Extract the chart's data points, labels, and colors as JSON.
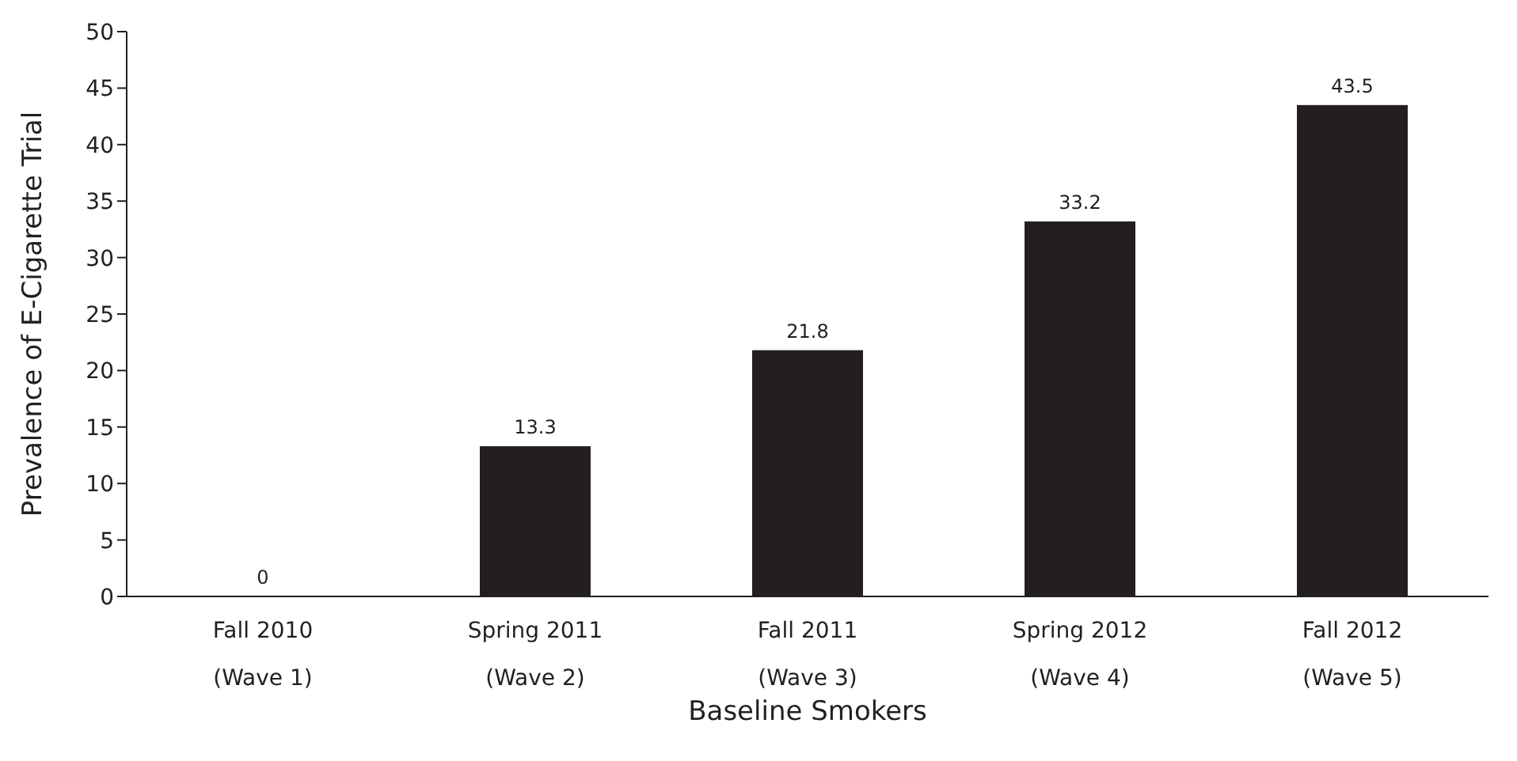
{
  "chart_data": {
    "type": "bar",
    "xlabel": "Baseline Smokers",
    "ylabel": "Prevalence of E-Cigarette Trial",
    "categories": [
      "Fall 2010\n(Wave 1)",
      "Spring 2011\n(Wave 2)",
      "Fall 2011\n(Wave 3)",
      "Spring 2012\n(Wave 4)",
      "Fall 2012\n(Wave 5)"
    ],
    "values": [
      0,
      13.3,
      21.8,
      33.2,
      43.5
    ],
    "color": "#231f20",
    "ylim": [
      0,
      50
    ],
    "yticks": [
      0,
      5,
      10,
      15,
      20,
      25,
      30,
      35,
      40,
      45,
      50
    ],
    "grid": false,
    "data_labels": true
  }
}
